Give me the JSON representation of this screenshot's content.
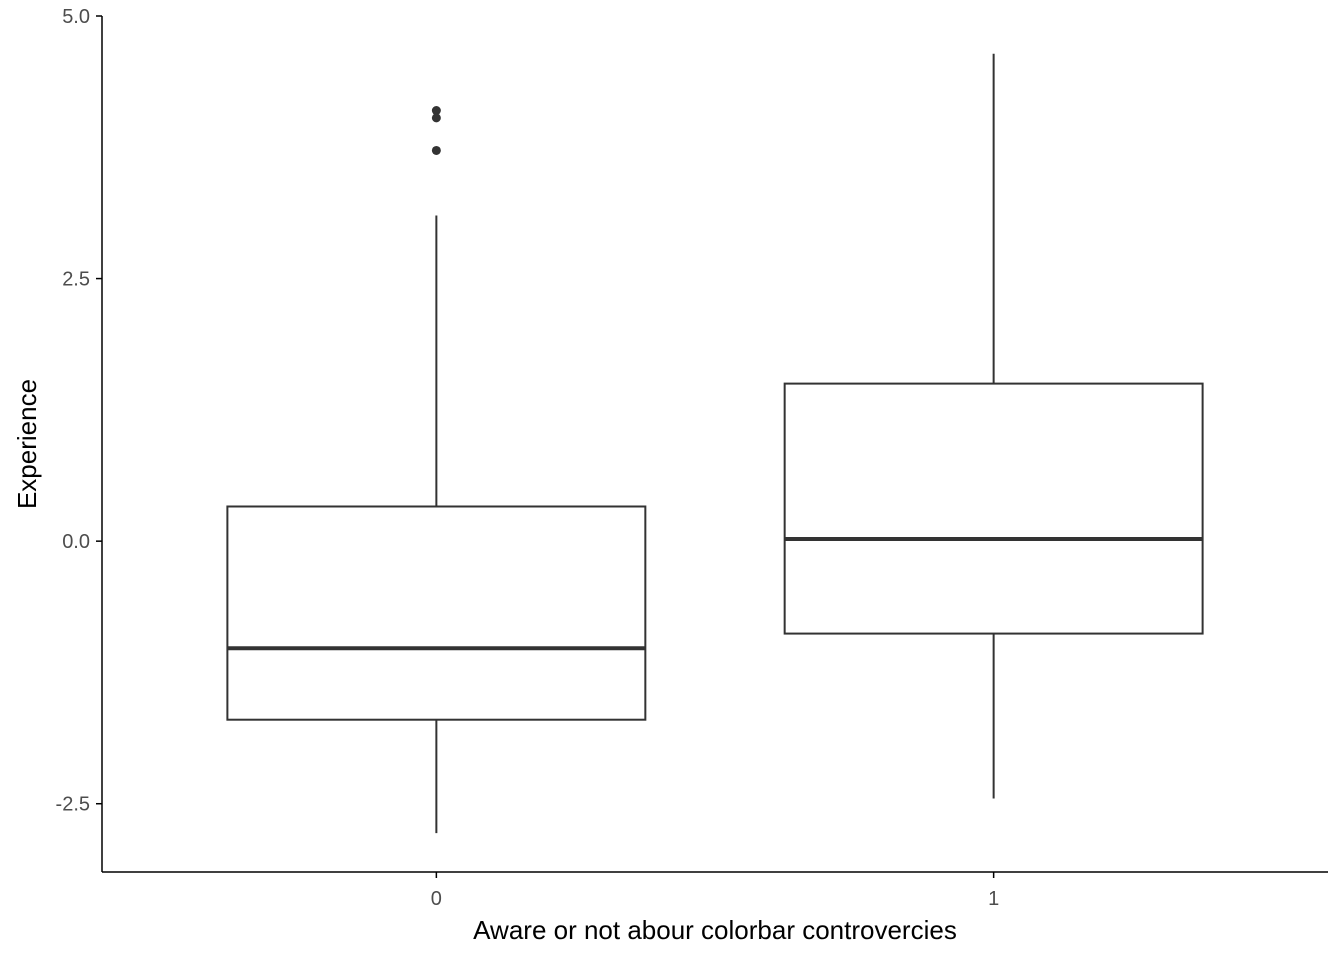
{
  "chart_data": {
    "type": "boxplot",
    "xlabel": "Aware or not abour colorbar controvercies",
    "ylabel": "Experience",
    "categories": [
      "0",
      "1"
    ],
    "ylim": [
      -3.15,
      5.0
    ],
    "yticks": [
      -2.5,
      0.0,
      2.5,
      5.0
    ],
    "ytick_labels": [
      "-2.5",
      "0.0",
      "2.5",
      "5.0"
    ],
    "grid": false,
    "legend": "none",
    "boxes": [
      {
        "category": "0",
        "whisker_low": -2.78,
        "q1": -1.7,
        "median": -1.02,
        "q3": 0.33,
        "whisker_high": 3.1,
        "outliers": [
          4.1,
          4.03,
          3.72
        ]
      },
      {
        "category": "1",
        "whisker_low": -2.45,
        "q1": -0.88,
        "median": 0.02,
        "q3": 1.5,
        "whisker_high": 4.64,
        "outliers": []
      }
    ],
    "colors": {
      "box_line": "#333333",
      "axis_line": "#000000",
      "tick_label": "#4d4d4d",
      "outlier": "#333333"
    }
  }
}
